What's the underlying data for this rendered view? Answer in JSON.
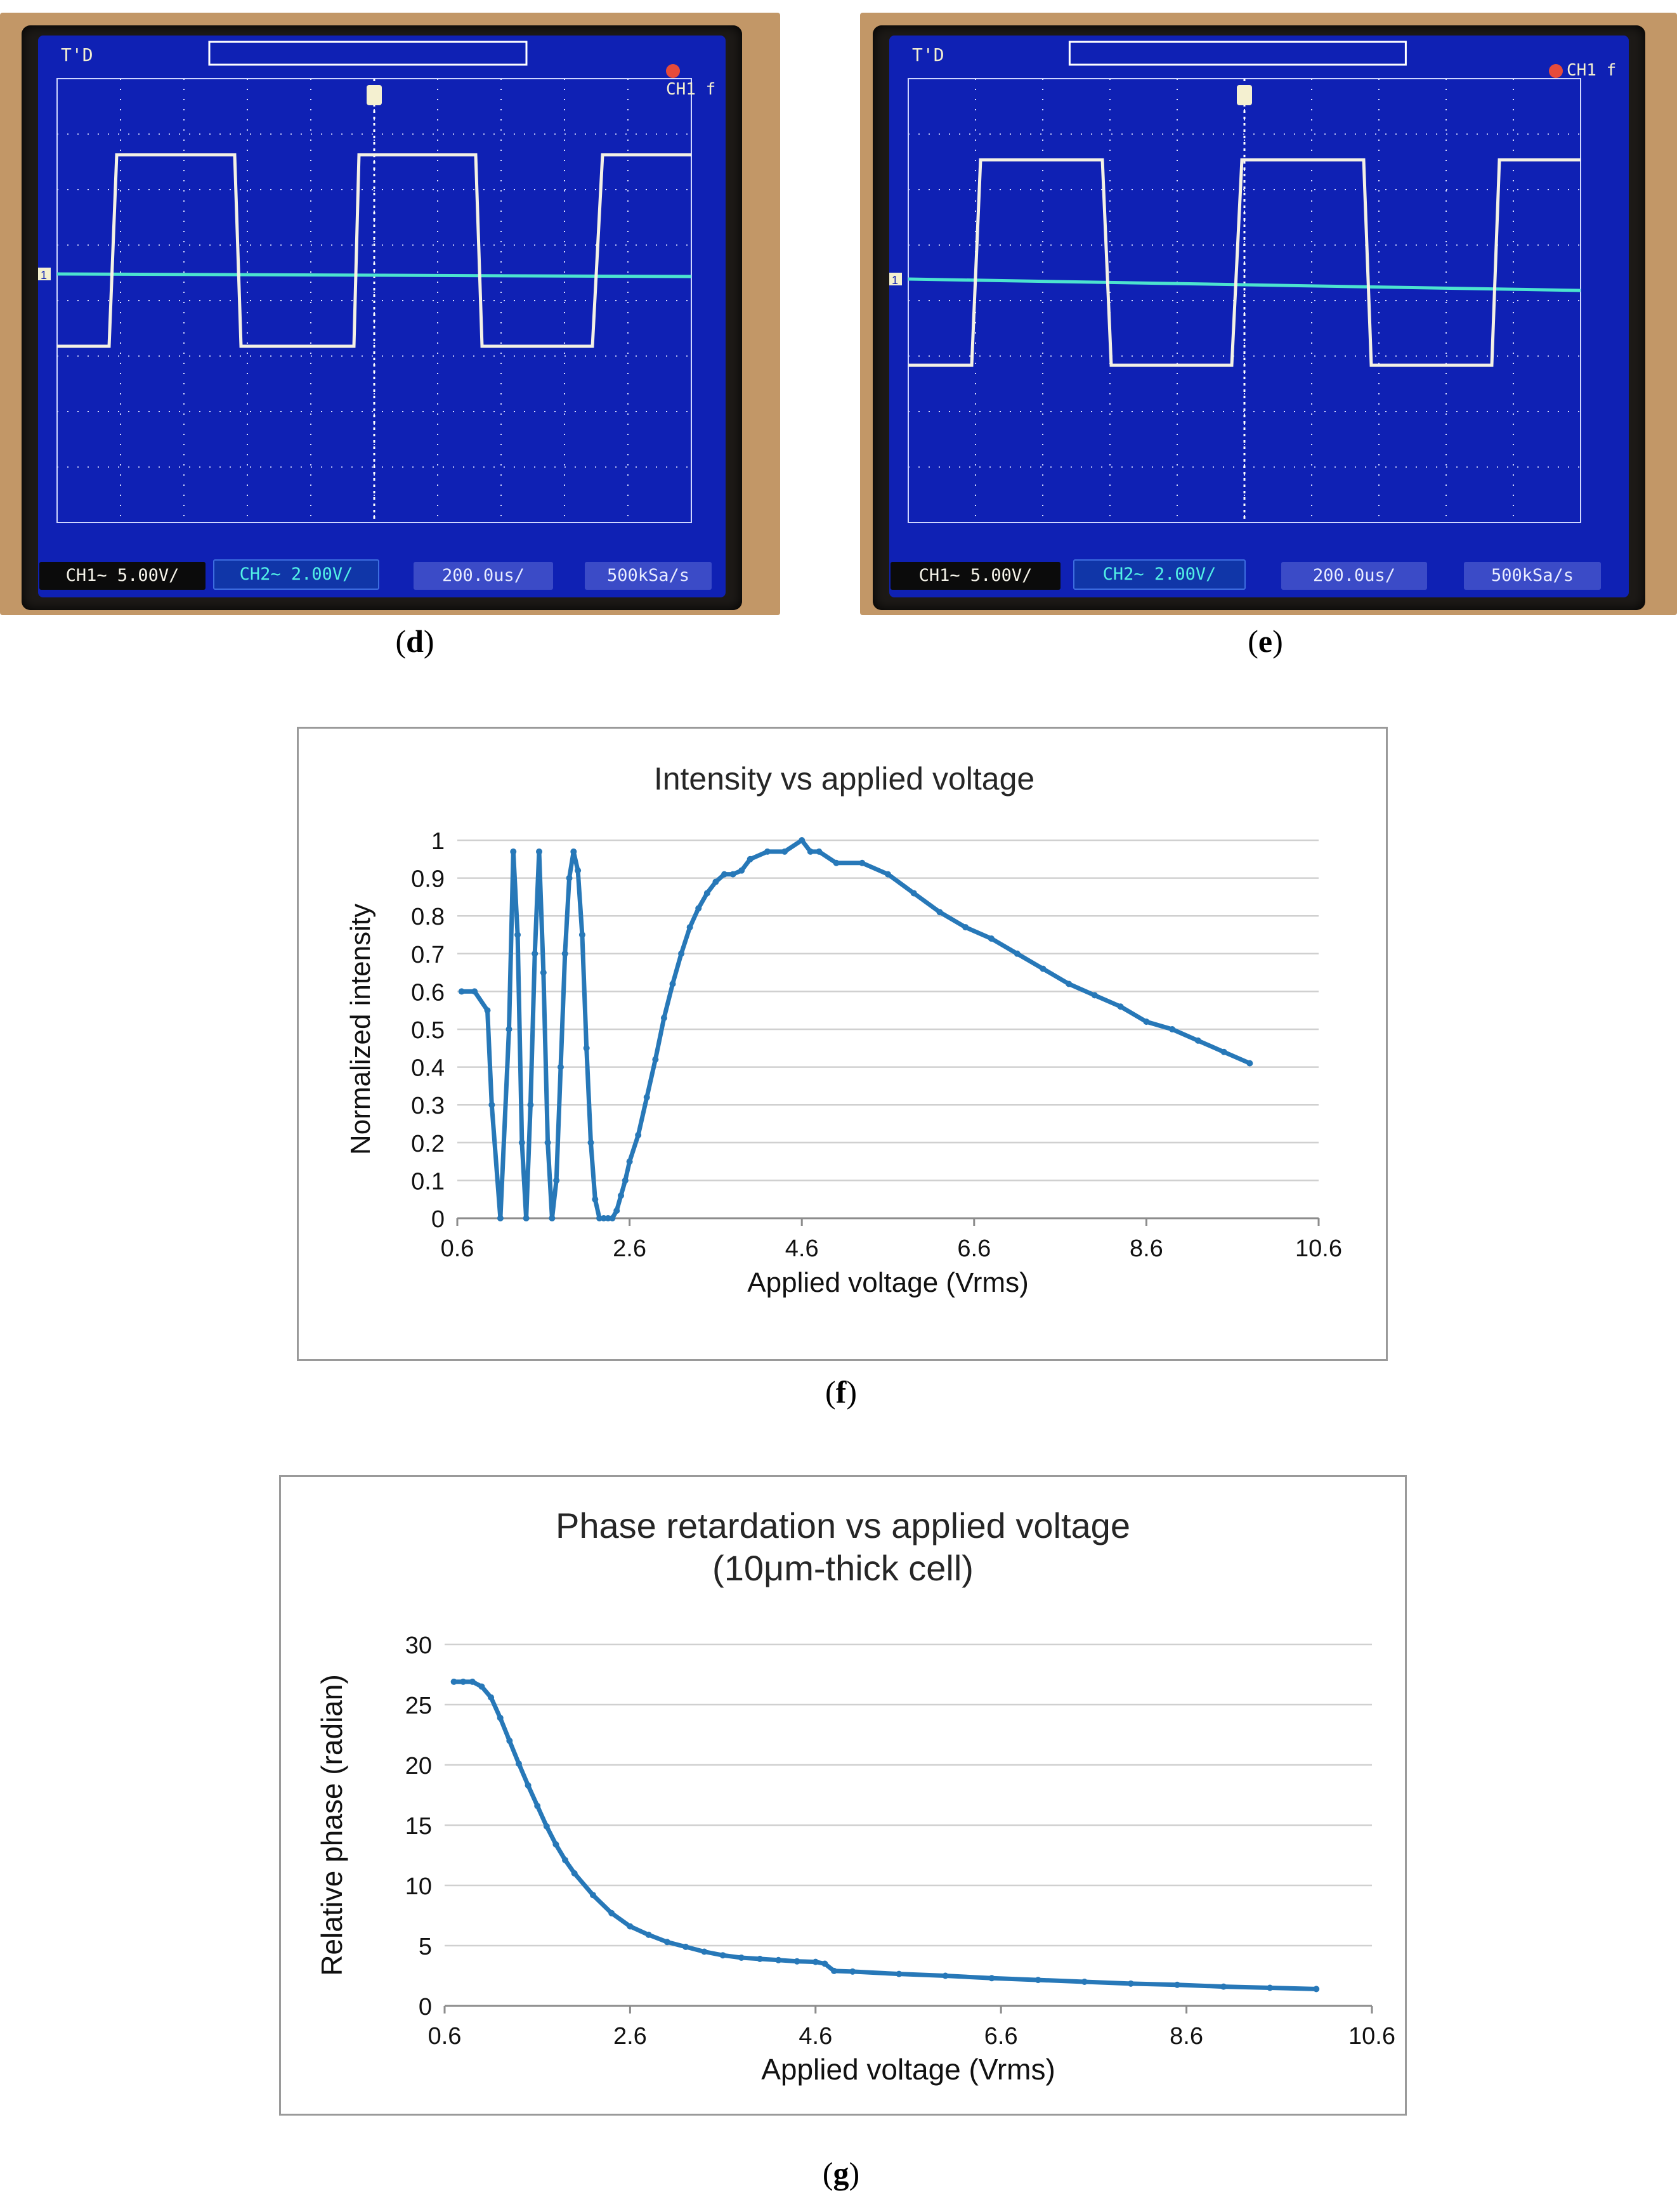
{
  "panels": {
    "d": {
      "caption_letter": "d",
      "scope": {
        "mode_label": "T'D",
        "trigger_label": "CH1",
        "trigger_slope": "f",
        "ch1_scale": "CH1~ 5.00V/",
        "ch2_scale": "CH2~ 2.00V/",
        "timebase": "200.0us/",
        "sample_rate": "500kSa/s",
        "ch_marker": "1"
      }
    },
    "e": {
      "caption_letter": "e",
      "scope": {
        "mode_label": "T'D",
        "trigger_label": "CH1",
        "trigger_slope": "f",
        "ch1_scale": "CH1~ 5.00V/",
        "ch2_scale": "CH2~ 2.00V/",
        "timebase": "200.0us/",
        "sample_rate": "500kSa/s",
        "ch_marker": "1"
      }
    },
    "f": {
      "caption_letter": "f"
    },
    "g": {
      "caption_letter": "g"
    }
  },
  "colors": {
    "series": "#2778b8",
    "grid": "#d0d0d0",
    "scope_trace": "#f4f1e4",
    "scope_ch2": "#4ce3cf"
  },
  "chart_data": [
    {
      "id": "f",
      "type": "line",
      "title": "Intensity vs applied voltage",
      "xlabel": "Applied voltage (Vrms)",
      "ylabel": "Normalized intensity",
      "xlim": [
        0.6,
        10.6
      ],
      "ylim": [
        0,
        1
      ],
      "xticks": [
        "0.6",
        "2.6",
        "4.6",
        "6.6",
        "8.6",
        "10.6"
      ],
      "yticks": [
        "0",
        "0.1",
        "0.2",
        "0.3",
        "0.4",
        "0.5",
        "0.6",
        "0.7",
        "0.8",
        "0.9",
        "1"
      ],
      "series": [
        {
          "name": "Normalized intensity",
          "x": [
            0.65,
            0.8,
            0.95,
            1.0,
            1.1,
            1.2,
            1.25,
            1.3,
            1.35,
            1.4,
            1.45,
            1.5,
            1.55,
            1.6,
            1.65,
            1.7,
            1.75,
            1.8,
            1.85,
            1.9,
            1.95,
            2.0,
            2.05,
            2.1,
            2.15,
            2.2,
            2.25,
            2.3,
            2.35,
            2.4,
            2.45,
            2.5,
            2.55,
            2.6,
            2.7,
            2.8,
            2.9,
            3.0,
            3.1,
            3.2,
            3.3,
            3.4,
            3.5,
            3.6,
            3.7,
            3.8,
            3.9,
            4.0,
            4.2,
            4.4,
            4.6,
            4.7,
            4.8,
            5.0,
            5.3,
            5.6,
            5.9,
            6.2,
            6.5,
            6.8,
            7.1,
            7.4,
            7.7,
            8.0,
            8.3,
            8.6,
            8.9,
            9.2,
            9.5,
            9.8
          ],
          "values": [
            0.6,
            0.6,
            0.55,
            0.3,
            0.0,
            0.5,
            0.97,
            0.75,
            0.2,
            0.0,
            0.3,
            0.7,
            0.97,
            0.65,
            0.2,
            0.0,
            0.1,
            0.4,
            0.7,
            0.9,
            0.97,
            0.92,
            0.75,
            0.45,
            0.2,
            0.05,
            0.0,
            0.0,
            0.0,
            0.0,
            0.02,
            0.06,
            0.1,
            0.15,
            0.22,
            0.32,
            0.42,
            0.53,
            0.62,
            0.7,
            0.77,
            0.82,
            0.86,
            0.89,
            0.91,
            0.91,
            0.92,
            0.95,
            0.97,
            0.97,
            1.0,
            0.97,
            0.97,
            0.94,
            0.94,
            0.91,
            0.86,
            0.81,
            0.77,
            0.74,
            0.7,
            0.66,
            0.62,
            0.59,
            0.56,
            0.52,
            0.5,
            0.47,
            0.44,
            0.41
          ]
        }
      ]
    },
    {
      "id": "g",
      "type": "line",
      "title": "Phase retardation vs applied voltage",
      "subtitle": "(10μm-thick cell)",
      "xlabel": "Applied voltage (Vrms)",
      "ylabel": "Relative phase (radian)",
      "xlim": [
        0.6,
        10.6
      ],
      "ylim": [
        0,
        30
      ],
      "xticks": [
        "0.6",
        "2.6",
        "4.6",
        "6.6",
        "8.6",
        "10.6"
      ],
      "yticks": [
        "0",
        "5",
        "10",
        "15",
        "20",
        "25",
        "30"
      ],
      "series": [
        {
          "name": "Relative phase",
          "x": [
            0.7,
            0.8,
            0.9,
            1.0,
            1.1,
            1.2,
            1.3,
            1.4,
            1.5,
            1.6,
            1.7,
            1.8,
            1.9,
            2.0,
            2.2,
            2.4,
            2.6,
            2.8,
            3.0,
            3.2,
            3.4,
            3.6,
            3.8,
            4.0,
            4.2,
            4.4,
            4.6,
            4.7,
            4.8,
            5.0,
            5.5,
            6.0,
            6.5,
            7.0,
            7.5,
            8.0,
            8.5,
            9.0,
            9.5,
            10.0
          ],
          "values": [
            26.9,
            26.9,
            26.9,
            26.5,
            25.6,
            23.9,
            22.0,
            20.1,
            18.3,
            16.6,
            14.9,
            13.4,
            12.1,
            11.0,
            9.2,
            7.7,
            6.6,
            5.9,
            5.3,
            4.9,
            4.5,
            4.2,
            4.0,
            3.9,
            3.8,
            3.7,
            3.65,
            3.5,
            2.9,
            2.85,
            2.65,
            2.5,
            2.3,
            2.15,
            2.0,
            1.85,
            1.75,
            1.6,
            1.5,
            1.4
          ]
        }
      ]
    }
  ]
}
